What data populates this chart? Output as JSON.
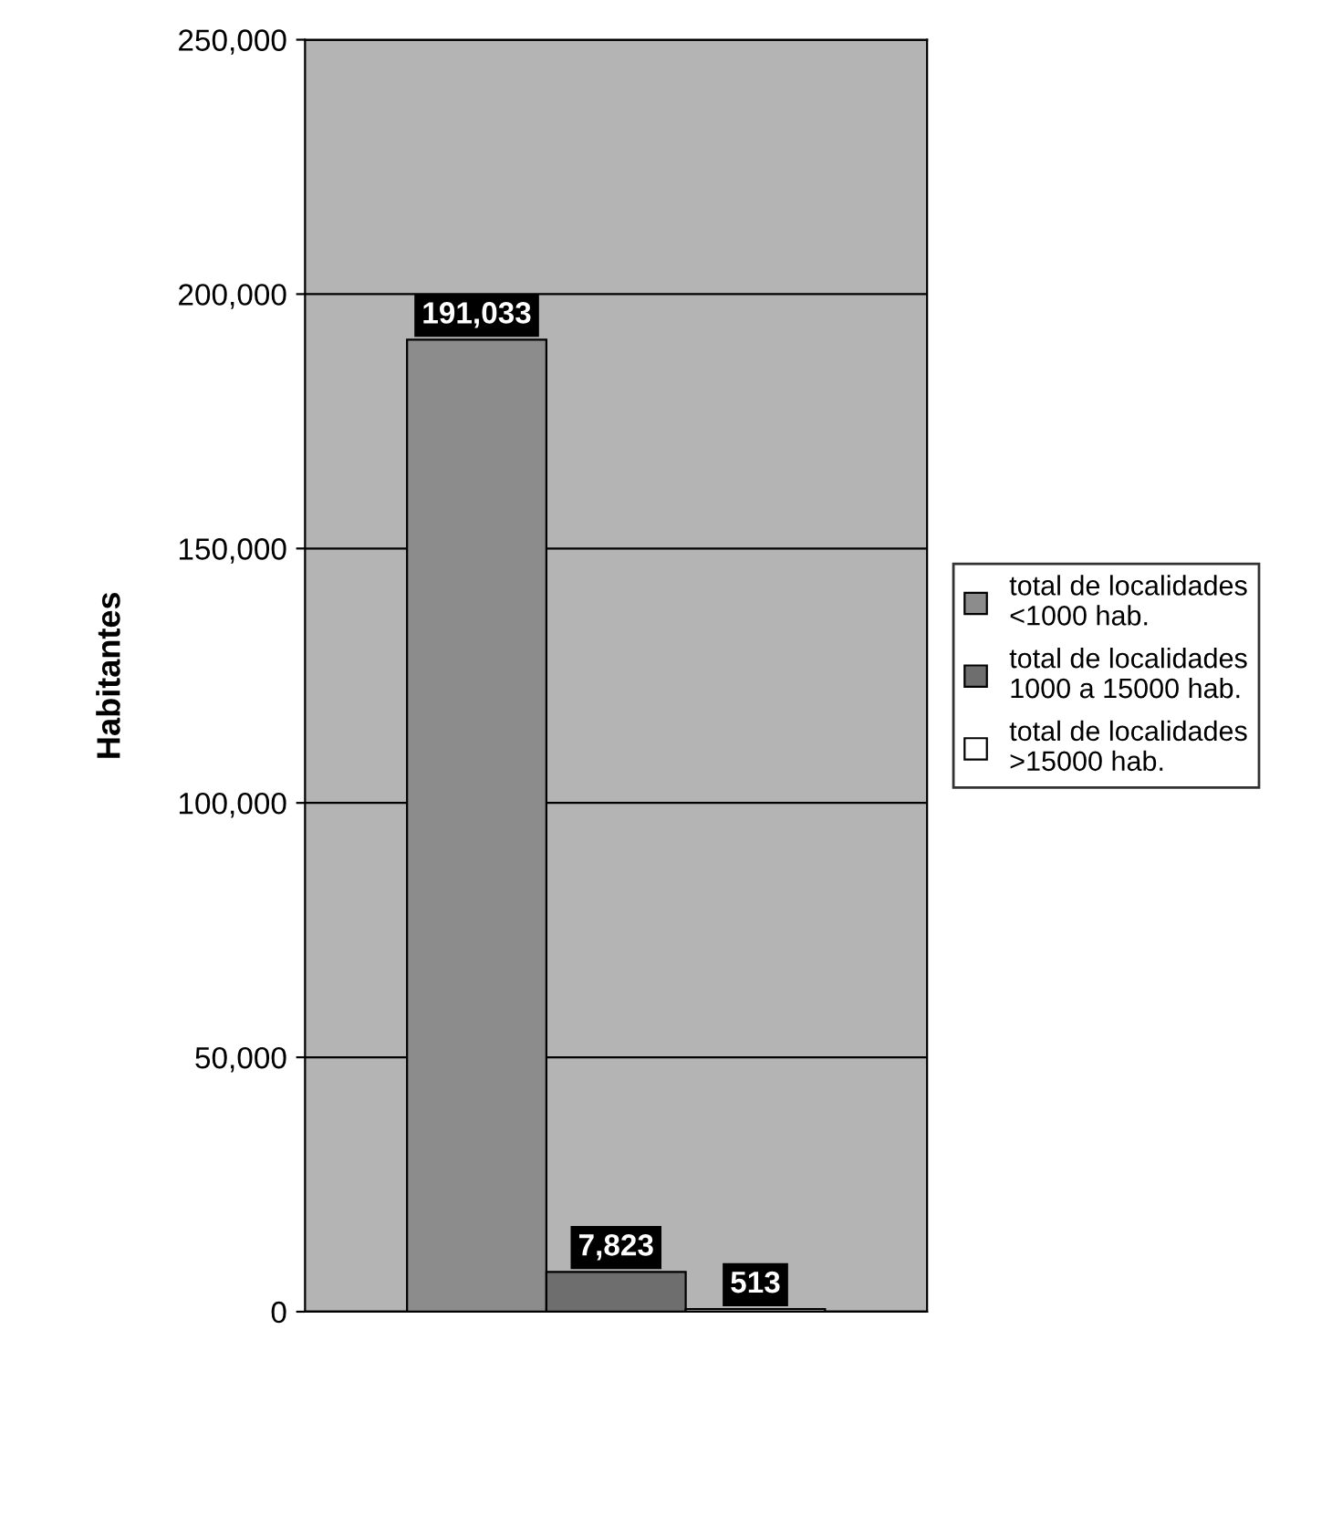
{
  "chart_data": {
    "type": "bar",
    "ylabel": "Habitantes",
    "categories": [
      null
    ],
    "series": [
      {
        "name": "total de localidades\n<1000 hab.",
        "color": "#8c8c8c",
        "values": [
          191033
        ],
        "value_labels": [
          "191,033"
        ]
      },
      {
        "name": "total de localidades\n1000 a 15000 hab.",
        "color": "#6e6e6e",
        "values": [
          7823
        ],
        "value_labels": [
          "7,823"
        ]
      },
      {
        "name": "total de localidades\n>15000 hab.",
        "color": "#ffffff",
        "values": [
          513
        ],
        "value_labels": [
          "513"
        ]
      }
    ],
    "ylim": [
      0,
      250000
    ],
    "yticks": [
      {
        "value": 0,
        "label": "0"
      },
      {
        "value": 50000,
        "label": "50,000"
      },
      {
        "value": 100000,
        "label": "100,000"
      },
      {
        "value": 150000,
        "label": "150,000"
      },
      {
        "value": 200000,
        "label": "200,000"
      },
      {
        "value": 250000,
        "label": "250,000"
      }
    ],
    "grid": "y",
    "legend": "right"
  }
}
